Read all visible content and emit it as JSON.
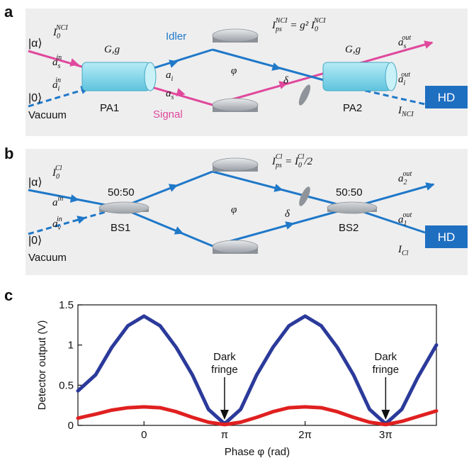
{
  "panel_a": {
    "label": "a",
    "input_coherent": "|α⟩",
    "input_vacuum": "|0⟩",
    "vacuum_label": "Vacuum",
    "I0": {
      "main": "I",
      "sub": "0",
      "sup": "NCI"
    },
    "as_in": {
      "main": "a",
      "sub": "s",
      "sup": "in"
    },
    "ai_in": {
      "main": "a",
      "sub": "i",
      "sup": "in"
    },
    "gain1": "G,g",
    "gain2": "G,g",
    "pa1": "PA1",
    "pa2": "PA2",
    "idler": "Idler",
    "signal": "Signal",
    "ai": {
      "main": "a",
      "sub": "i"
    },
    "as": {
      "main": "a",
      "sub": "s"
    },
    "phi": "φ",
    "delta": "δ",
    "Ips": {
      "main": "I",
      "sub": "ps",
      "sup": "NCI",
      "rhs": " = g² I",
      "rhs_sub": "0",
      "rhs_sup": "NCI"
    },
    "as_out": {
      "main": "a",
      "sub": "s",
      "sup": "out"
    },
    "ai_out": {
      "main": "a",
      "sub": "i",
      "sup": "out"
    },
    "I_out": {
      "main": "I",
      "sub": "NCI"
    },
    "hd": "HD",
    "colors": {
      "idler": "#1f78c8",
      "signal": "#e0489c",
      "crystal": "#86d8ea"
    }
  },
  "panel_b": {
    "label": "b",
    "input_coherent": "|α⟩",
    "input_vacuum": "|0⟩",
    "vacuum_label": "Vacuum",
    "I0": {
      "main": "I",
      "sub": "0",
      "sup": "Cl"
    },
    "a_in": {
      "main": "a",
      "sup": "in"
    },
    "av_in": {
      "main": "a",
      "sub": "v",
      "sup": "in"
    },
    "bs1_ratio": "50:50",
    "bs2_ratio": "50:50",
    "bs1": "BS1",
    "bs2": "BS2",
    "phi": "φ",
    "delta": "δ",
    "Ips": {
      "main": "I",
      "sub": "ps",
      "sup": "Cl",
      "rhs": " = I",
      "rhs_sub": "0",
      "rhs_sup": "Cl",
      "rhs_tail": "/2"
    },
    "a2_out": {
      "main": "a",
      "sub": "2",
      "sup": "out"
    },
    "a1_out": {
      "main": "a",
      "sub": "1",
      "sup": "out"
    },
    "I_out": {
      "main": "I",
      "sub": "Cl"
    },
    "hd": "HD"
  },
  "panel_c": {
    "label": "c",
    "annotations": [
      {
        "text": [
          "Dark",
          "fringe"
        ],
        "x_pi": 1
      },
      {
        "text": [
          "Dark",
          "fringe"
        ],
        "x_pi": 3
      }
    ]
  },
  "chart_data": {
    "type": "line",
    "xlabel": "Phase φ (rad)",
    "ylabel": "Detector output (V)",
    "xlim_pi": [
      -0.82,
      3.63
    ],
    "ylim": [
      0,
      1.5
    ],
    "x_ticks": [
      {
        "v": 0,
        "label": "0"
      },
      {
        "v": 1,
        "label": "π"
      },
      {
        "v": 2,
        "label": "2π"
      },
      {
        "v": 3,
        "label": "3π"
      }
    ],
    "y_ticks": [
      {
        "v": 0,
        "label": "0"
      },
      {
        "v": 0.5,
        "label": "0.5"
      },
      {
        "v": 1,
        "label": "1"
      },
      {
        "v": 1.5,
        "label": "1.5"
      }
    ],
    "series": [
      {
        "color": "#2b3a9a",
        "x_pi": [
          -0.82,
          -0.6,
          -0.4,
          -0.2,
          0,
          0.2,
          0.4,
          0.6,
          0.8,
          1.0,
          1.2,
          1.4,
          1.6,
          1.8,
          2.0,
          2.2,
          2.4,
          2.6,
          2.8,
          3.0,
          3.2,
          3.4,
          3.63
        ],
        "y": [
          0.43,
          0.63,
          0.97,
          1.24,
          1.36,
          1.24,
          0.97,
          0.63,
          0.2,
          0.02,
          0.2,
          0.63,
          0.97,
          1.24,
          1.36,
          1.24,
          0.97,
          0.63,
          0.2,
          0.02,
          0.2,
          0.6,
          1.0
        ]
      },
      {
        "color": "#e02020",
        "x_pi": [
          -0.82,
          -0.6,
          -0.4,
          -0.2,
          0,
          0.2,
          0.4,
          0.6,
          0.8,
          1.0,
          1.2,
          1.4,
          1.6,
          1.8,
          2.0,
          2.2,
          2.4,
          2.6,
          2.8,
          3.0,
          3.2,
          3.4,
          3.63
        ],
        "y": [
          0.09,
          0.14,
          0.19,
          0.22,
          0.23,
          0.22,
          0.17,
          0.1,
          0.04,
          0.01,
          0.04,
          0.1,
          0.17,
          0.22,
          0.23,
          0.22,
          0.17,
          0.1,
          0.04,
          0.01,
          0.05,
          0.11,
          0.18
        ]
      }
    ]
  }
}
